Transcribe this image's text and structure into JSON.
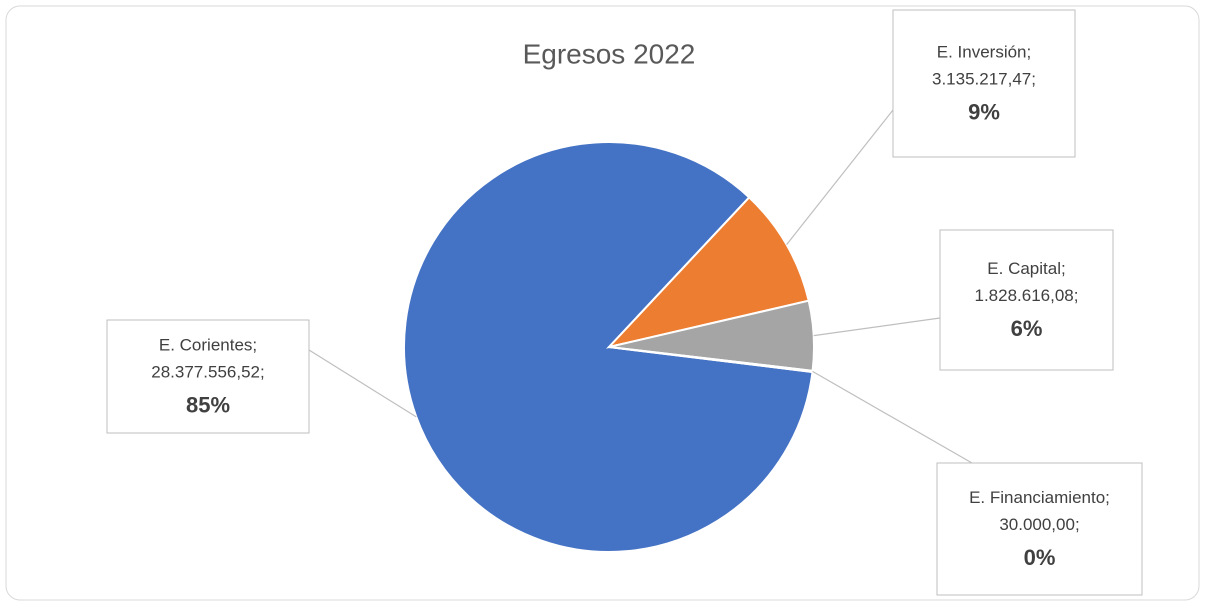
{
  "chart_data": {
    "type": "pie",
    "title": "Egresos 2022",
    "categories": [
      "E. Corientes",
      "E. Inversión",
      "E. Capital",
      "E. Financiamiento"
    ],
    "values": [
      28377556.52,
      3135217.47,
      1828616.08,
      30000.0
    ],
    "value_labels": [
      "28.377.556,52",
      "3.135.217,47",
      "1.828.616,08",
      "30.000,00"
    ],
    "percents": [
      85,
      9,
      6,
      0
    ],
    "percent_labels": [
      "85%",
      "9%",
      "6%",
      "0%"
    ],
    "label_separator": ";",
    "colors": [
      "#4472c4",
      "#ed7d31",
      "#a5a5a5",
      "#ffc000"
    ]
  }
}
